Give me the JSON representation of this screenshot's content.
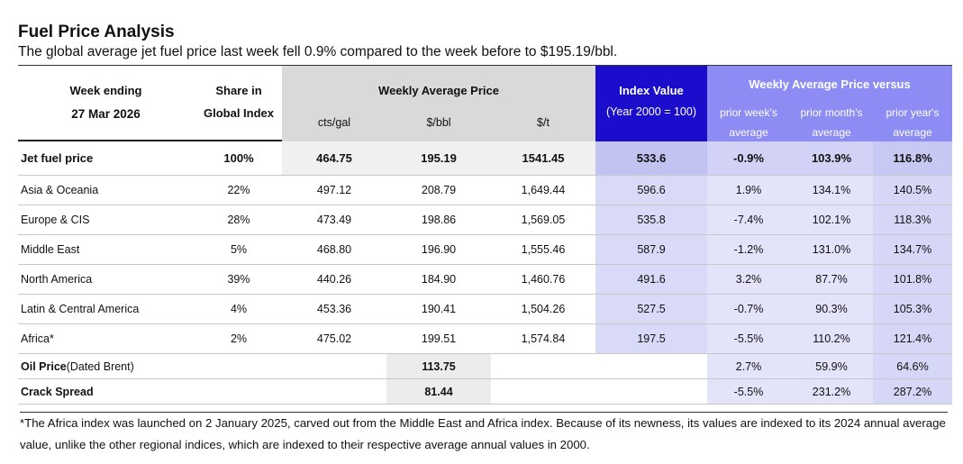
{
  "title": "Fuel Price Analysis",
  "subtitle": "The global average jet fuel price last week fell 0.9% compared to the week before to $195.19/bbl.",
  "header": {
    "week_ending_label": "Week ending",
    "week_ending_date": "27 Mar 2026",
    "share_line1": "Share in",
    "share_line2": "Global Index",
    "weekly_avg_label": "Weekly Average Price",
    "unit_cts": "cts/gal",
    "unit_bbl": "$/bbl",
    "unit_t": "$/t",
    "index_label": "Index Value",
    "index_sub": "(Year 2000 = 100)",
    "versus_label": "Weekly Average Price versus",
    "prior_week_1": "prior week's",
    "prior_week_2": "average",
    "prior_month_1": "prior month's",
    "prior_month_2": "average",
    "prior_year_1": "prior year's",
    "prior_year_2": "average"
  },
  "main_row": {
    "name": "Jet fuel price",
    "share": "100%",
    "cts": "464.75",
    "bbl": "195.19",
    "t": "1541.45",
    "index": "533.6",
    "wk": "-0.9%",
    "mo": "103.9%",
    "yr": "116.8%"
  },
  "regions": [
    {
      "name": "Asia & Oceania",
      "share": "22%",
      "cts": "497.12",
      "bbl": "208.79",
      "t": "1,649.44",
      "index": "596.6",
      "wk": "1.9%",
      "mo": "134.1%",
      "yr": "140.5%"
    },
    {
      "name": "Europe & CIS",
      "share": "28%",
      "cts": "473.49",
      "bbl": "198.86",
      "t": "1,569.05",
      "index": "535.8",
      "wk": "-7.4%",
      "mo": "102.1%",
      "yr": "118.3%"
    },
    {
      "name": "Middle East",
      "share": "5%",
      "cts": "468.80",
      "bbl": "196.90",
      "t": "1,555.46",
      "index": "587.9",
      "wk": "-1.2%",
      "mo": "131.0%",
      "yr": "134.7%"
    },
    {
      "name": "North America",
      "share": "39%",
      "cts": "440.26",
      "bbl": "184.90",
      "t": "1,460.76",
      "index": "491.6",
      "wk": "3.2%",
      "mo": "87.7%",
      "yr": "101.8%"
    },
    {
      "name": "Latin & Central America",
      "share": "4%",
      "cts": "453.36",
      "bbl": "190.41",
      "t": "1,504.26",
      "index": "527.5",
      "wk": "-0.7%",
      "mo": "90.3%",
      "yr": "105.3%"
    },
    {
      "name": "Africa*",
      "share": "2%",
      "cts": "475.02",
      "bbl": "199.51",
      "t": "1,574.84",
      "index": "197.5",
      "wk": "-5.5%",
      "mo": "110.2%",
      "yr": "121.4%"
    }
  ],
  "oil_row": {
    "name_bold": "Oil Price",
    "name_rest": " (Dated Brent)",
    "bbl": "113.75",
    "wk": "2.7%",
    "mo": "59.9%",
    "yr": "64.6%"
  },
  "crack_row": {
    "name": "Crack Spread",
    "bbl": "81.44",
    "wk": "-5.5%",
    "mo": "231.2%",
    "yr": "287.2%"
  },
  "footnote": "*The Africa index was launched on 2 January 2025, carved out from the Middle East and Africa index. Because of its newness, its values are indexed  to its 2024 annual average value, unlike the other regional indices, which are indexed to their respective average annual values in 2000."
}
